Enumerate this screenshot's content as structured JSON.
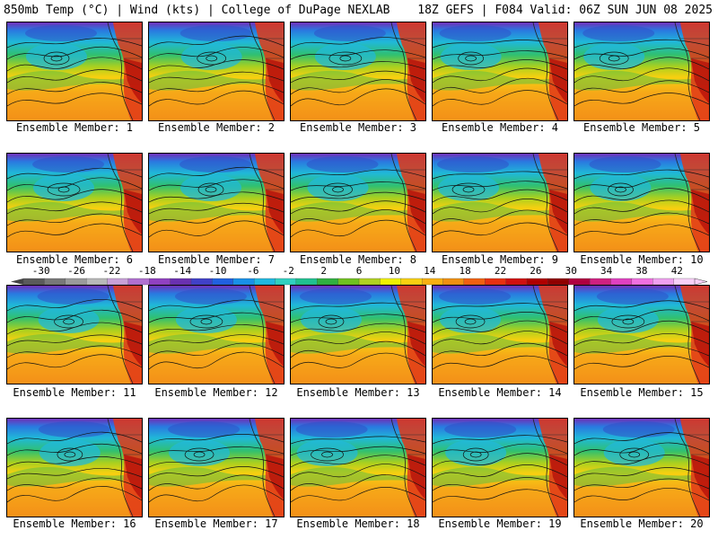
{
  "header": {
    "left": "850mb Temp (°C) | Wind (kts) | College of DuPage NEXLAB",
    "right": "18Z GEFS | F084 Valid: 06Z SUN JUN 08 2025"
  },
  "panels": [
    {
      "label": "Ensemble Member: 1"
    },
    {
      "label": "Ensemble Member: 2"
    },
    {
      "label": "Ensemble Member: 3"
    },
    {
      "label": "Ensemble Member: 4"
    },
    {
      "label": "Ensemble Member: 5"
    },
    {
      "label": "Ensemble Member: 6"
    },
    {
      "label": "Ensemble Member: 7"
    },
    {
      "label": "Ensemble Member: 8"
    },
    {
      "label": "Ensemble Member: 9"
    },
    {
      "label": "Ensemble Member: 10"
    },
    {
      "label": "Ensemble Member: 11"
    },
    {
      "label": "Ensemble Member: 12"
    },
    {
      "label": "Ensemble Member: 13"
    },
    {
      "label": "Ensemble Member: 14"
    },
    {
      "label": "Ensemble Member: 15"
    },
    {
      "label": "Ensemble Member: 16"
    },
    {
      "label": "Ensemble Member: 17"
    },
    {
      "label": "Ensemble Member: 18"
    },
    {
      "label": "Ensemble Member: 19"
    },
    {
      "label": "Ensemble Member: 20"
    }
  ],
  "colorbar": {
    "labels": [
      "-30",
      "-26",
      "-22",
      "-18",
      "-14",
      "-10",
      "-6",
      "-2",
      "2",
      "6",
      "10",
      "14",
      "18",
      "22",
      "26",
      "30",
      "34",
      "38",
      "42"
    ],
    "colors": [
      "#5a5a5a",
      "#787878",
      "#9a9a9a",
      "#b8b8b8",
      "#c8a0d8",
      "#b070d0",
      "#9040c0",
      "#6a30b0",
      "#4040c8",
      "#2060e0",
      "#1890e8",
      "#20b8e0",
      "#30d0c0",
      "#20c090",
      "#30b040",
      "#70c020",
      "#b0d020",
      "#f0f000",
      "#f8d010",
      "#f8b010",
      "#f09010",
      "#f06010",
      "#e83010",
      "#d01010",
      "#b00000",
      "#900000",
      "#b00040",
      "#d02080",
      "#e040c0",
      "#f070e0",
      "#f0a0f0",
      "#f8d0f8"
    ]
  }
}
